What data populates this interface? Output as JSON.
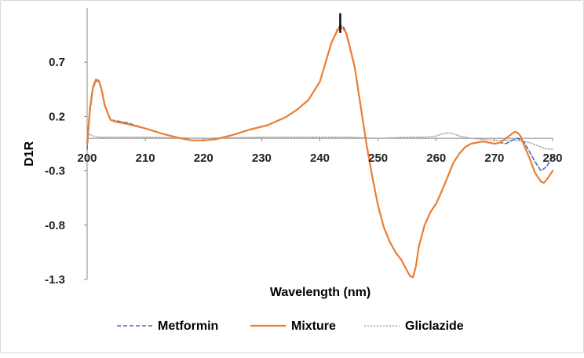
{
  "chart_data": {
    "type": "line",
    "title": "",
    "xlabel": "Wavelength (nm)",
    "ylabel": "D1R",
    "xlim": [
      200,
      280
    ],
    "ylim": [
      -1.3,
      1.2
    ],
    "x_ticks": [
      "200",
      "210",
      "220",
      "230",
      "240",
      "250",
      "260",
      "270",
      "280"
    ],
    "y_ticks": [
      "0.7",
      "0.2",
      "-0.3",
      "-0.8",
      "-1.3"
    ],
    "legend_position": "bottom",
    "marker_line": {
      "x": 243.5,
      "y_from": 0.97,
      "y_to": 1.15
    },
    "series": [
      {
        "name": "Metformin",
        "color": "#4472C4",
        "dash": "dashed",
        "x": [
          200,
          200.5,
          201,
          201.5,
          202,
          202.5,
          203,
          204,
          205,
          207,
          210,
          213,
          216,
          218,
          220,
          222,
          225,
          228,
          231,
          234,
          236,
          238,
          240,
          241,
          242,
          243,
          243.5,
          244,
          244.5,
          245,
          246,
          247,
          248,
          249,
          250,
          251,
          252,
          253,
          254,
          255,
          255.5,
          256,
          256.5,
          257,
          258,
          259,
          260,
          261,
          262,
          263,
          264,
          265,
          266,
          267,
          268,
          269,
          270,
          271,
          272,
          273,
          274,
          275,
          276,
          277,
          278,
          279,
          280
        ],
        "y": [
          -0.1,
          0.25,
          0.45,
          0.53,
          0.52,
          0.44,
          0.3,
          0.17,
          0.16,
          0.14,
          0.09,
          0.04,
          0.0,
          -0.02,
          -0.02,
          -0.01,
          0.03,
          0.08,
          0.12,
          0.19,
          0.26,
          0.35,
          0.52,
          0.7,
          0.88,
          1.0,
          1.04,
          1.03,
          0.98,
          0.88,
          0.65,
          0.3,
          -0.05,
          -0.35,
          -0.62,
          -0.82,
          -0.95,
          -1.05,
          -1.12,
          -1.22,
          -1.27,
          -1.27,
          -1.18,
          -1.0,
          -0.8,
          -0.68,
          -0.6,
          -0.48,
          -0.35,
          -0.22,
          -0.14,
          -0.08,
          -0.05,
          -0.04,
          -0.03,
          -0.04,
          -0.05,
          -0.04,
          -0.05,
          -0.02,
          0.0,
          -0.03,
          -0.12,
          -0.22,
          -0.3,
          -0.26,
          -0.17
        ]
      },
      {
        "name": "Mixture",
        "color": "#ED7D31",
        "dash": "solid",
        "x": [
          200,
          200.5,
          201,
          201.5,
          202,
          202.5,
          203,
          204,
          205,
          207,
          210,
          213,
          216,
          218,
          220,
          222,
          225,
          228,
          231,
          234,
          236,
          238,
          240,
          241,
          242,
          243,
          243.5,
          244,
          244.5,
          245,
          246,
          247,
          248,
          249,
          250,
          251,
          252,
          253,
          254,
          255,
          255.5,
          256,
          256.5,
          257,
          258,
          259,
          260,
          261,
          262,
          263,
          264,
          265,
          266,
          267,
          268,
          269,
          270,
          271,
          272,
          273,
          273.5,
          274,
          274.5,
          275,
          276,
          277,
          278,
          278.5,
          279,
          280
        ],
        "y": [
          -0.05,
          0.28,
          0.47,
          0.54,
          0.53,
          0.45,
          0.31,
          0.17,
          0.15,
          0.13,
          0.09,
          0.04,
          0.0,
          -0.02,
          -0.02,
          -0.01,
          0.03,
          0.08,
          0.12,
          0.19,
          0.26,
          0.35,
          0.52,
          0.7,
          0.88,
          0.99,
          1.02,
          1.01,
          0.97,
          0.87,
          0.65,
          0.3,
          -0.05,
          -0.35,
          -0.62,
          -0.82,
          -0.95,
          -1.05,
          -1.12,
          -1.22,
          -1.27,
          -1.28,
          -1.18,
          -1.0,
          -0.8,
          -0.68,
          -0.6,
          -0.48,
          -0.35,
          -0.22,
          -0.14,
          -0.08,
          -0.05,
          -0.04,
          -0.03,
          -0.04,
          -0.05,
          -0.04,
          0.0,
          0.04,
          0.06,
          0.05,
          0.02,
          -0.05,
          -0.18,
          -0.32,
          -0.4,
          -0.41,
          -0.38,
          -0.3
        ]
      },
      {
        "name": "Gliclazide",
        "color": "#A6A6A6",
        "dash": "dotted",
        "x": [
          200,
          201,
          202,
          204,
          210,
          220,
          230,
          240,
          245,
          250,
          255,
          258,
          260,
          261,
          262,
          263,
          264,
          266,
          268,
          270,
          272,
          274,
          276,
          278,
          279,
          280
        ],
        "y": [
          0.05,
          0.02,
          0.01,
          0.01,
          0.01,
          0.0,
          0.01,
          0.01,
          0.01,
          0.0,
          0.01,
          0.01,
          0.02,
          0.04,
          0.05,
          0.04,
          0.02,
          0.0,
          -0.01,
          -0.02,
          -0.02,
          -0.02,
          -0.04,
          -0.08,
          -0.1,
          -0.1
        ]
      }
    ]
  }
}
